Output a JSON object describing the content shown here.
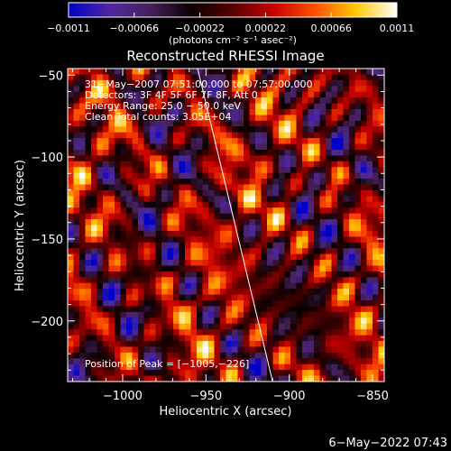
{
  "chart_data": {
    "type": "heatmap",
    "title": "Reconstructed RHESSI Image",
    "xlabel": "Heliocentric X (arcsec)",
    "ylabel": "Heliocentric Y (arcsec)",
    "xlim": [
      -1033,
      -843
    ],
    "ylim": [
      -237,
      -46
    ],
    "x_ticks": [
      -1000,
      -950,
      -900,
      -850
    ],
    "x_tick_labels": [
      "−1000",
      "−950",
      "−900",
      "−850"
    ],
    "y_ticks": [
      -50,
      -100,
      -150,
      -200
    ],
    "y_tick_labels": [
      "−50",
      "−100",
      "−150",
      "−200"
    ],
    "colorbar": {
      "range": [
        -0.0011,
        0.0011
      ],
      "ticks": [
        -0.0011,
        -0.00066,
        -0.00022,
        0.00022,
        0.00066,
        0.0011
      ],
      "tick_labels": [
        "−0.0011",
        "−0.00066",
        "−0.00022",
        "0.00022",
        "0.00066",
        "0.0011"
      ],
      "units_label": "(photons cm⁻² s⁻¹ asec⁻²)"
    },
    "annotations": [
      "31−May−2007 07:51:00.000 to 07:57:00.000",
      "Detectors: 3F 4F 5F 6F 7F 8F, Att 0",
      "Energy Range: 25.0 − 50.0 keV",
      "Clean    Total counts: 3.05E+04"
    ],
    "peak_label": "Position of Peak = [−1005,−226]",
    "timestamp": "6−May−2022 07:43",
    "limb_line": {
      "x": [
        -955,
        -910
      ],
      "y": [
        -46,
        -237
      ]
    },
    "grid": false,
    "colormap": [
      "#0000c8",
      "#5028a0",
      "#46205a",
      "#0a0000",
      "#5a0000",
      "#c80000",
      "#ff5000",
      "#ffc800",
      "#ffffff"
    ]
  }
}
